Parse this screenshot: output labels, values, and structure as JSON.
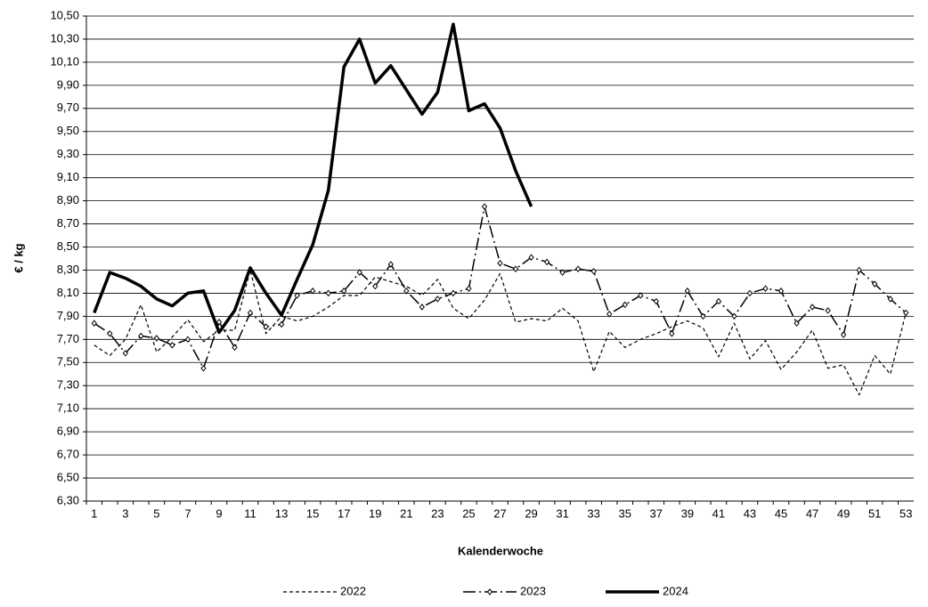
{
  "chart_data": {
    "type": "line",
    "x_label": "Kalenderwoche",
    "y_label": "€ / kg",
    "categories": [
      "1",
      null,
      "3",
      null,
      "5",
      null,
      "7",
      null,
      "9",
      null,
      "11",
      null,
      "13",
      null,
      "15",
      null,
      "17",
      null,
      "19",
      null,
      "21",
      null,
      "23",
      null,
      "25",
      null,
      "27",
      null,
      "29",
      null,
      "31",
      null,
      "33",
      null,
      "35",
      null,
      "37",
      null,
      "39",
      null,
      "41",
      null,
      "43",
      null,
      "45",
      null,
      "47",
      null,
      "49",
      null,
      "51",
      null,
      "53"
    ],
    "ylim": [
      6.3,
      10.5
    ],
    "yticks": [
      {
        "value": 6.3,
        "label": "6,30"
      },
      {
        "value": 6.5,
        "label": "6,50"
      },
      {
        "value": 6.7,
        "label": "6,70"
      },
      {
        "value": 6.9,
        "label": "6,90"
      },
      {
        "value": 7.1,
        "label": "7,10"
      },
      {
        "value": 7.3,
        "label": "7,30"
      },
      {
        "value": 7.5,
        "label": "7,50"
      },
      {
        "value": 7.7,
        "label": "7,70"
      },
      {
        "value": 7.9,
        "label": "7,90"
      },
      {
        "value": 8.1,
        "label": "8,10"
      },
      {
        "value": 8.3,
        "label": "8,30"
      },
      {
        "value": 8.5,
        "label": "8,50"
      },
      {
        "value": 8.7,
        "label": "8,70"
      },
      {
        "value": 8.9,
        "label": "8,90"
      },
      {
        "value": 9.1,
        "label": "9,10"
      },
      {
        "value": 9.3,
        "label": "9,30"
      },
      {
        "value": 9.5,
        "label": "9,50"
      },
      {
        "value": 9.7,
        "label": "9,70"
      },
      {
        "value": 9.9,
        "label": "9,90"
      },
      {
        "value": 10.1,
        "label": "10,10"
      },
      {
        "value": 10.3,
        "label": "10,30"
      },
      {
        "value": 10.5,
        "label": "10,50"
      }
    ],
    "grid": true,
    "legend": "bottom",
    "series": [
      {
        "name": "2022",
        "color": "#000000",
        "line_style": "dashed",
        "values": [
          7.65,
          7.56,
          7.7,
          8.0,
          7.59,
          7.72,
          7.87,
          7.68,
          7.78,
          7.78,
          8.3,
          7.75,
          7.9,
          7.86,
          7.9,
          7.98,
          8.08,
          8.08,
          8.24,
          8.2,
          8.16,
          8.08,
          8.22,
          7.97,
          7.88,
          8.04,
          8.27,
          7.85,
          7.88,
          7.86,
          7.97,
          7.86,
          7.42,
          7.77,
          7.63,
          7.7,
          7.75,
          7.81,
          7.86,
          7.8,
          7.55,
          7.84,
          7.53,
          7.69,
          7.44,
          7.59,
          7.78,
          7.45,
          7.48,
          7.22,
          7.56,
          7.4,
          7.93
        ]
      },
      {
        "name": "2023",
        "color": "#000000",
        "line_style": "dashdot",
        "marker": "diamond",
        "values": [
          7.84,
          7.75,
          7.58,
          7.73,
          7.71,
          7.65,
          7.7,
          7.45,
          7.85,
          7.63,
          7.93,
          7.81,
          7.83,
          8.08,
          8.12,
          8.1,
          8.12,
          8.28,
          8.16,
          8.35,
          8.12,
          7.98,
          8.05,
          8.1,
          8.14,
          8.85,
          8.36,
          8.31,
          8.41,
          8.37,
          8.28,
          8.31,
          8.29,
          7.92,
          8.0,
          8.08,
          8.03,
          7.75,
          8.12,
          7.9,
          8.03,
          7.9,
          8.1,
          8.14,
          8.12,
          7.84,
          7.98,
          7.95,
          7.74,
          8.3,
          8.18,
          8.05,
          7.93
        ]
      },
      {
        "name": "2024",
        "color": "#000000",
        "line_style": "solid",
        "values": [
          7.93,
          8.28,
          8.23,
          8.16,
          8.05,
          7.99,
          8.1,
          8.12,
          7.76,
          7.95,
          8.32,
          8.1,
          7.91,
          8.22,
          8.52,
          8.99,
          10.06,
          10.3,
          9.92,
          10.07,
          9.86,
          9.65,
          9.84,
          10.43,
          9.68,
          9.74,
          9.53,
          9.16,
          8.85,
          null,
          null,
          null,
          null,
          null,
          null,
          null,
          null,
          null,
          null,
          null,
          null,
          null,
          null,
          null,
          null,
          null,
          null,
          null,
          null,
          null,
          null,
          null,
          null
        ]
      }
    ]
  }
}
